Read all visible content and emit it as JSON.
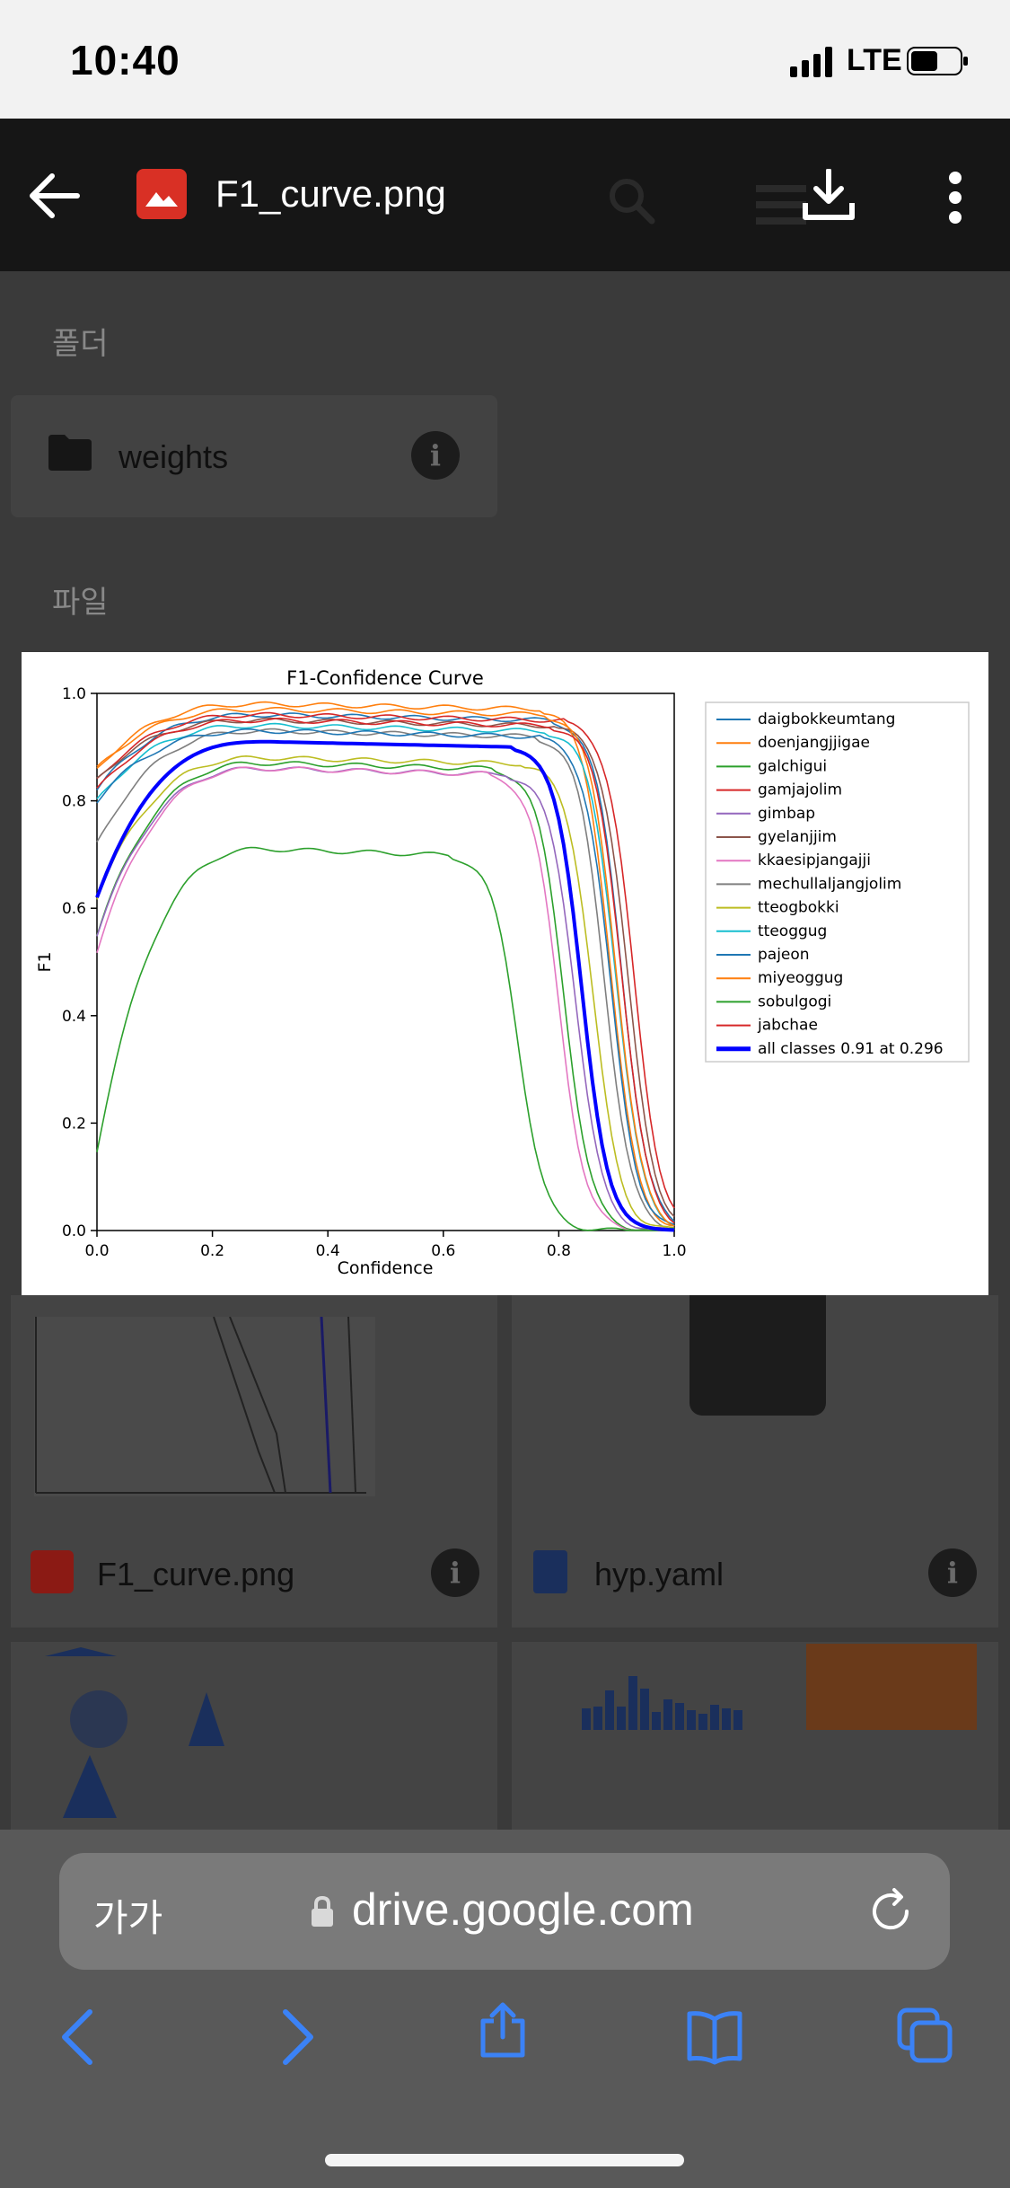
{
  "status_bar": {
    "time": "10:40",
    "network": "LTE",
    "battery_level": 0.55
  },
  "viewer": {
    "file_name": "F1_curve.png"
  },
  "drive": {
    "folders_heading": "폴더",
    "folder_name": "weights",
    "files_heading": "파일",
    "tile_names": [
      "F1_curve.png",
      "hyp.yaml"
    ]
  },
  "chart_data": {
    "type": "line",
    "title": "F1-Confidence Curve",
    "xlabel": "Confidence",
    "ylabel": "F1",
    "xlim": [
      0,
      1
    ],
    "ylim": [
      0,
      1
    ],
    "xticks": [
      "0.0",
      "0.2",
      "0.4",
      "0.6",
      "0.8",
      "1.0"
    ],
    "yticks": [
      "0.0",
      "0.2",
      "0.4",
      "0.6",
      "0.8",
      "1.0"
    ],
    "legend_position": "outside-right",
    "series": [
      {
        "name": "daigbokkeumtang",
        "color": "#1f77b4",
        "plateau": 0.96,
        "start": 0.82,
        "drop": 0.93
      },
      {
        "name": "doenjangjjigae",
        "color": "#ff7f0e",
        "plateau": 0.98,
        "start": 0.86,
        "drop": 0.91
      },
      {
        "name": "galchigui",
        "color": "#2ca02c",
        "plateau": 0.87,
        "start": 0.55,
        "drop": 0.83
      },
      {
        "name": "gamjajolim",
        "color": "#d62728",
        "plateau": 0.96,
        "start": 0.84,
        "drop": 0.95
      },
      {
        "name": "gimbap",
        "color": "#9467bd",
        "plateau": 0.86,
        "start": 0.55,
        "drop": 0.85
      },
      {
        "name": "gyelanjjim",
        "color": "#8c564b",
        "plateau": 0.95,
        "start": 0.84,
        "drop": 0.94
      },
      {
        "name": "kkaesipjangajji",
        "color": "#e377c2",
        "plateau": 0.86,
        "start": 0.52,
        "drop": 0.82
      },
      {
        "name": "mechullaljangjolim",
        "color": "#7f7f7f",
        "plateau": 0.93,
        "start": 0.72,
        "drop": 0.9
      },
      {
        "name": "tteogbokki",
        "color": "#bcbd22",
        "plateau": 0.88,
        "start": 0.62,
        "drop": 0.88
      },
      {
        "name": "tteoggug",
        "color": "#17becf",
        "plateau": 0.94,
        "start": 0.8,
        "drop": 0.92
      },
      {
        "name": "pajeon",
        "color": "#1f77b4",
        "plateau": 0.93,
        "start": 0.8,
        "drop": 0.91
      },
      {
        "name": "miyeoggug",
        "color": "#ff7f0e",
        "plateau": 0.97,
        "start": 0.86,
        "drop": 0.92
      },
      {
        "name": "sobulgogi",
        "color": "#2ca02c",
        "plateau": 0.71,
        "start": 0.15,
        "drop": 0.75
      },
      {
        "name": "jabchae",
        "color": "#d62728",
        "plateau": 0.95,
        "start": 0.82,
        "drop": 0.93
      },
      {
        "name": "all classes 0.91 at 0.296",
        "color": "#0000ff",
        "plateau": 0.91,
        "start": 0.62,
        "drop": 0.86,
        "bold": true
      }
    ]
  },
  "browser": {
    "text_size_label": "가가",
    "url": "drive.google.com"
  }
}
